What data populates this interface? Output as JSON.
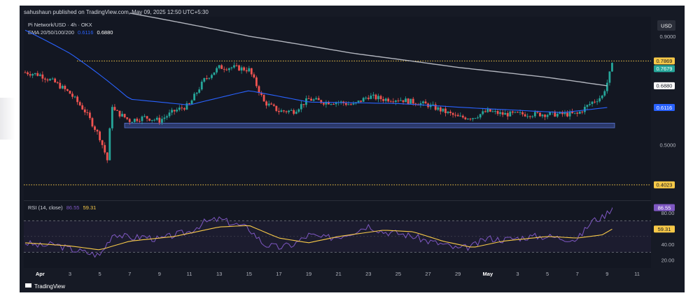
{
  "header": {
    "published_by": "sahushaun published on TradingView.com, May 09, 2025 12:50 UTC+5:30"
  },
  "legend": {
    "symbol": "Pi Network/USD · 4h · OKX",
    "ema_label": "EMA 20/50/100/200",
    "ema_value_a": "0.6116",
    "ema_value_b": "0.6880",
    "rsi_label": "RSI (14, close)",
    "rsi_value": "86.55",
    "rsi_ma_value": "59.31"
  },
  "currency_button": "USD",
  "price_axis": {
    "ticks": [
      "0.9000",
      "0.5000"
    ],
    "tags": {
      "level_high": "0.7869",
      "last_price": "0.7679",
      "ema_200": "0.6880",
      "ema_50": "0.6116",
      "level_low": "0.4023"
    }
  },
  "rsi_axis": {
    "ticks": [
      "80.00",
      "40.00",
      "20.00"
    ],
    "tags": {
      "rsi": "86.55",
      "rsi_ma": "59.31"
    }
  },
  "time_axis": [
    "Apr",
    "3",
    "5",
    "7",
    "9",
    "11",
    "13",
    "15",
    "17",
    "19",
    "21",
    "23",
    "25",
    "27",
    "29",
    "May",
    "3",
    "5",
    "7",
    "9",
    "11"
  ],
  "footer": {
    "brand": "TradingView"
  },
  "colors": {
    "background": "#161a25",
    "up": "#26a69a",
    "down": "#ef5350",
    "ema_200": "#b2b5be",
    "ema_50": "#2962ff",
    "rsi": "#7e57c2",
    "rsi_ma": "#f7c948",
    "level_line": "#f7c948",
    "support_zone": "#3f56a8"
  },
  "chart_data": [
    {
      "type": "candlestick",
      "title": "Pi Network/USD · 4h · OKX",
      "x_range": [
        "2025-03-31",
        "2025-05-11"
      ],
      "ylim": [
        0.37,
        1.0
      ],
      "y_scale": "log",
      "horizontal_levels": [
        0.7869,
        0.4023
      ],
      "support_zone": [
        0.548,
        0.562
      ],
      "close_path": [
        {
          "x": "2025-03-31",
          "y": 0.74
        },
        {
          "x": "2025-04-01",
          "y": 0.73
        },
        {
          "x": "2025-04-02",
          "y": 0.7
        },
        {
          "x": "2025-04-03",
          "y": 0.66
        },
        {
          "x": "2025-04-04",
          "y": 0.6
        },
        {
          "x": "2025-04-05",
          "y": 0.52
        },
        {
          "x": "2025-04-05T12:00",
          "y": 0.46
        },
        {
          "x": "2025-04-05T20:00",
          "y": 0.62
        },
        {
          "x": "2025-04-06",
          "y": 0.6
        },
        {
          "x": "2025-04-07",
          "y": 0.57
        },
        {
          "x": "2025-04-08",
          "y": 0.58
        },
        {
          "x": "2025-04-09",
          "y": 0.57
        },
        {
          "x": "2025-04-10",
          "y": 0.6
        },
        {
          "x": "2025-04-11",
          "y": 0.62
        },
        {
          "x": "2025-04-12",
          "y": 0.71
        },
        {
          "x": "2025-04-13",
          "y": 0.76
        },
        {
          "x": "2025-04-14",
          "y": 0.76
        },
        {
          "x": "2025-04-15",
          "y": 0.75
        },
        {
          "x": "2025-04-16",
          "y": 0.63
        },
        {
          "x": "2025-04-17",
          "y": 0.6
        },
        {
          "x": "2025-04-18",
          "y": 0.6
        },
        {
          "x": "2025-04-19",
          "y": 0.64
        },
        {
          "x": "2025-04-20",
          "y": 0.63
        },
        {
          "x": "2025-04-21",
          "y": 0.63
        },
        {
          "x": "2025-04-22",
          "y": 0.62
        },
        {
          "x": "2025-04-23",
          "y": 0.65
        },
        {
          "x": "2025-04-24",
          "y": 0.64
        },
        {
          "x": "2025-04-25",
          "y": 0.64
        },
        {
          "x": "2025-04-26",
          "y": 0.63
        },
        {
          "x": "2025-04-27",
          "y": 0.62
        },
        {
          "x": "2025-04-28",
          "y": 0.6
        },
        {
          "x": "2025-04-29",
          "y": 0.58
        },
        {
          "x": "2025-04-30",
          "y": 0.58
        },
        {
          "x": "2025-05-01",
          "y": 0.6
        },
        {
          "x": "2025-05-02",
          "y": 0.59
        },
        {
          "x": "2025-05-03",
          "y": 0.59
        },
        {
          "x": "2025-05-04",
          "y": 0.59
        },
        {
          "x": "2025-05-05",
          "y": 0.59
        },
        {
          "x": "2025-05-06",
          "y": 0.59
        },
        {
          "x": "2025-05-07",
          "y": 0.59
        },
        {
          "x": "2025-05-08",
          "y": 0.63
        },
        {
          "x": "2025-05-08T16:00",
          "y": 0.65
        },
        {
          "x": "2025-05-09",
          "y": 0.7
        },
        {
          "x": "2025-05-09T08:00",
          "y": 0.7679
        }
      ],
      "ema_200": [
        {
          "x": "2025-04-07",
          "y": 1.02
        },
        {
          "x": "2025-04-15",
          "y": 0.9
        },
        {
          "x": "2025-04-22",
          "y": 0.82
        },
        {
          "x": "2025-04-29",
          "y": 0.76
        },
        {
          "x": "2025-05-05",
          "y": 0.72
        },
        {
          "x": "2025-05-09",
          "y": 0.688
        }
      ],
      "ema_50": [
        {
          "x": "2025-03-31",
          "y": 0.93
        },
        {
          "x": "2025-04-03",
          "y": 0.82
        },
        {
          "x": "2025-04-07",
          "y": 0.64
        },
        {
          "x": "2025-04-11",
          "y": 0.62
        },
        {
          "x": "2025-04-15",
          "y": 0.67
        },
        {
          "x": "2025-04-19",
          "y": 0.63
        },
        {
          "x": "2025-04-25",
          "y": 0.625
        },
        {
          "x": "2025-04-30",
          "y": 0.61
        },
        {
          "x": "2025-05-06",
          "y": 0.595
        },
        {
          "x": "2025-05-09",
          "y": 0.6116
        }
      ]
    },
    {
      "type": "line",
      "title": "RSI (14, close)",
      "ylim": [
        10,
        95
      ],
      "bands": [
        30,
        70
      ],
      "series": [
        {
          "name": "RSI",
          "points": [
            {
              "x": "2025-03-31",
              "y": 42
            },
            {
              "x": "2025-04-01",
              "y": 38
            },
            {
              "x": "2025-04-02",
              "y": 40
            },
            {
              "x": "2025-04-03",
              "y": 34
            },
            {
              "x": "2025-04-04",
              "y": 30
            },
            {
              "x": "2025-04-05",
              "y": 26
            },
            {
              "x": "2025-04-05T20:00",
              "y": 52
            },
            {
              "x": "2025-04-06",
              "y": 54
            },
            {
              "x": "2025-04-07",
              "y": 48
            },
            {
              "x": "2025-04-08",
              "y": 50
            },
            {
              "x": "2025-04-09",
              "y": 46
            },
            {
              "x": "2025-04-10",
              "y": 52
            },
            {
              "x": "2025-04-11",
              "y": 56
            },
            {
              "x": "2025-04-12",
              "y": 68
            },
            {
              "x": "2025-04-13",
              "y": 72
            },
            {
              "x": "2025-04-14",
              "y": 66
            },
            {
              "x": "2025-04-15",
              "y": 60
            },
            {
              "x": "2025-04-16",
              "y": 40
            },
            {
              "x": "2025-04-17",
              "y": 36
            },
            {
              "x": "2025-04-18",
              "y": 40
            },
            {
              "x": "2025-04-19",
              "y": 52
            },
            {
              "x": "2025-04-20",
              "y": 48
            },
            {
              "x": "2025-04-21",
              "y": 50
            },
            {
              "x": "2025-04-22",
              "y": 56
            },
            {
              "x": "2025-04-23",
              "y": 64
            },
            {
              "x": "2025-04-24",
              "y": 56
            },
            {
              "x": "2025-04-25",
              "y": 54
            },
            {
              "x": "2025-04-26",
              "y": 50
            },
            {
              "x": "2025-04-27",
              "y": 44
            },
            {
              "x": "2025-04-28",
              "y": 40
            },
            {
              "x": "2025-04-29",
              "y": 34
            },
            {
              "x": "2025-04-30",
              "y": 38
            },
            {
              "x": "2025-05-01",
              "y": 48
            },
            {
              "x": "2025-05-02",
              "y": 46
            },
            {
              "x": "2025-05-03",
              "y": 48
            },
            {
              "x": "2025-05-04",
              "y": 50
            },
            {
              "x": "2025-05-05",
              "y": 50
            },
            {
              "x": "2025-05-06",
              "y": 48
            },
            {
              "x": "2025-05-07",
              "y": 46
            },
            {
              "x": "2025-05-08",
              "y": 70
            },
            {
              "x": "2025-05-08T16:00",
              "y": 74
            },
            {
              "x": "2025-05-09",
              "y": 80
            },
            {
              "x": "2025-05-09T08:00",
              "y": 86.55
            }
          ]
        },
        {
          "name": "RSI MA",
          "points": [
            {
              "x": "2025-03-31",
              "y": 42
            },
            {
              "x": "2025-04-03",
              "y": 38
            },
            {
              "x": "2025-04-05",
              "y": 33
            },
            {
              "x": "2025-04-07",
              "y": 44
            },
            {
              "x": "2025-04-10",
              "y": 50
            },
            {
              "x": "2025-04-13",
              "y": 62
            },
            {
              "x": "2025-04-15",
              "y": 64
            },
            {
              "x": "2025-04-17",
              "y": 48
            },
            {
              "x": "2025-04-19",
              "y": 42
            },
            {
              "x": "2025-04-21",
              "y": 50
            },
            {
              "x": "2025-04-24",
              "y": 58
            },
            {
              "x": "2025-04-26",
              "y": 56
            },
            {
              "x": "2025-04-28",
              "y": 44
            },
            {
              "x": "2025-04-30",
              "y": 36
            },
            {
              "x": "2025-05-02",
              "y": 44
            },
            {
              "x": "2025-05-05",
              "y": 50
            },
            {
              "x": "2025-05-07",
              "y": 48
            },
            {
              "x": "2025-05-08T16:00",
              "y": 52
            },
            {
              "x": "2025-05-09T08:00",
              "y": 59.31
            }
          ]
        }
      ]
    }
  ]
}
